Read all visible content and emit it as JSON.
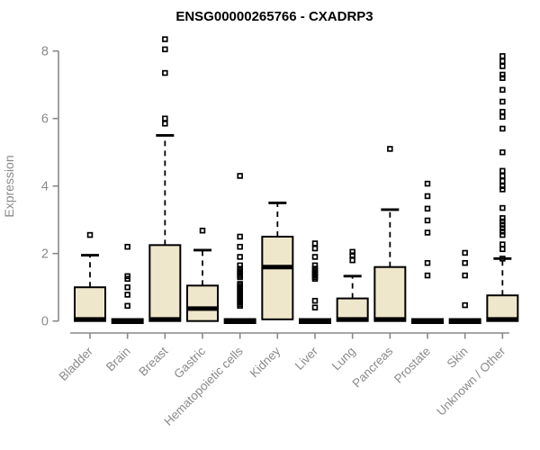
{
  "chart_data": {
    "type": "boxplot",
    "title": "ENSG00000265766 - CXADRP3",
    "ylabel": "Expression",
    "xlabel": "",
    "yticks": [
      0,
      2,
      4,
      6,
      8
    ],
    "ylim": [
      0,
      8.4
    ],
    "grid": false,
    "legend": false,
    "categories": [
      "Bladder",
      "Brain",
      "Breast",
      "Gastric",
      "Hematopoietic cells",
      "Kidney",
      "Liver",
      "Lung",
      "Pancreas",
      "Prostate",
      "Skin",
      "Unknown / Other"
    ],
    "series": [
      {
        "name": "Bladder",
        "whisker_low": 0,
        "q1": 0,
        "median": 0.05,
        "q3": 1.0,
        "whisker_high": 1.95,
        "outliers": [
          2.55
        ]
      },
      {
        "name": "Brain",
        "whisker_low": 0,
        "q1": 0,
        "median": 0,
        "q3": 0,
        "whisker_high": 0,
        "outliers": [
          2.2,
          1.33,
          1.25,
          1.0,
          0.78,
          0.45
        ]
      },
      {
        "name": "Breast",
        "whisker_low": 0,
        "q1": 0,
        "median": 0.05,
        "q3": 2.25,
        "whisker_high": 5.5,
        "outliers": [
          8.35,
          8.05,
          7.35,
          6.0,
          5.85
        ]
      },
      {
        "name": "Gastric",
        "whisker_low": 0,
        "q1": 0,
        "median": 0.37,
        "q3": 1.05,
        "whisker_high": 2.1,
        "outliers": [
          2.68
        ]
      },
      {
        "name": "Hematopoietic cells",
        "whisker_low": 0,
        "q1": 0,
        "median": 0,
        "q3": 0,
        "whisker_high": 0,
        "outliers": [
          4.3,
          2.5,
          2.2,
          1.9,
          1.65,
          1.55,
          1.5,
          1.45,
          1.4,
          1.35,
          1.3,
          1.1,
          1.05,
          1.0,
          0.95,
          0.9,
          0.85,
          0.8,
          0.75,
          0.7,
          0.65,
          0.6,
          0.55,
          0.5,
          0.45
        ]
      },
      {
        "name": "Kidney",
        "whisker_low": 0.05,
        "q1": 0.05,
        "median": 1.6,
        "q3": 2.5,
        "whisker_high": 3.5,
        "outliers": []
      },
      {
        "name": "Liver",
        "whisker_low": 0,
        "q1": 0,
        "median": 0,
        "q3": 0,
        "whisker_high": 0,
        "outliers": [
          2.3,
          2.15,
          1.9,
          1.65,
          1.55,
          1.5,
          1.45,
          1.4,
          1.35,
          1.3,
          1.25,
          0.6,
          0.4
        ]
      },
      {
        "name": "Lung",
        "whisker_low": 0,
        "q1": 0,
        "median": 0.05,
        "q3": 0.67,
        "whisker_high": 1.33,
        "outliers": [
          2.05,
          1.95,
          1.8
        ]
      },
      {
        "name": "Pancreas",
        "whisker_low": 0,
        "q1": 0,
        "median": 0.05,
        "q3": 1.6,
        "whisker_high": 3.3,
        "outliers": [
          5.1
        ]
      },
      {
        "name": "Prostate",
        "whisker_low": 0,
        "q1": 0,
        "median": 0,
        "q3": 0,
        "whisker_high": 0,
        "outliers": [
          4.07,
          3.7,
          3.33,
          2.98,
          2.62,
          1.72,
          1.35
        ]
      },
      {
        "name": "Skin",
        "whisker_low": 0,
        "q1": 0,
        "median": 0,
        "q3": 0,
        "whisker_high": 0,
        "outliers": [
          2.02,
          1.72,
          1.35,
          0.47
        ]
      },
      {
        "name": "Unknown / Other",
        "whisker_low": 0,
        "q1": 0,
        "median": 0.05,
        "q3": 0.76,
        "whisker_high": 1.85,
        "outliers": [
          7.85,
          7.7,
          7.55,
          7.3,
          7.2,
          6.85,
          6.5,
          6.2,
          6.05,
          5.7,
          5.0,
          4.45,
          4.3,
          4.15,
          4.0,
          3.9,
          3.35,
          3.05,
          2.95,
          2.85,
          2.75,
          2.65,
          2.55,
          2.27,
          2.13,
          1.85
        ]
      }
    ],
    "colors": {
      "box_fill": "#efe7cb",
      "box_stroke": "#000000",
      "median": "#000000",
      "outlier": "#000000",
      "axis": "#888888",
      "tick_label": "#8a8a8a",
      "title": "#000000",
      "background": "#ffffff"
    }
  }
}
